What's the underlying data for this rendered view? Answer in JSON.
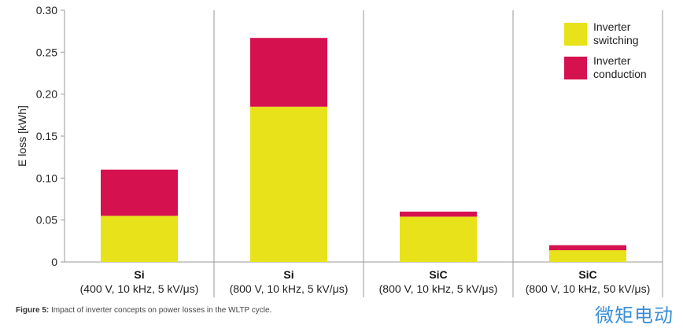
{
  "chart_data": {
    "type": "bar",
    "stacked": true,
    "ylabel": "E loss [kWh]",
    "ylim": [
      0,
      0.3
    ],
    "yticks": [
      "0",
      "0.05",
      "0.10",
      "0.15",
      "0.20",
      "0.25",
      "0.30"
    ],
    "categories": [
      {
        "name": "Si",
        "sub": "(400 V, 10 kHz, 5 kV/μs)"
      },
      {
        "name": "Si",
        "sub": "(800 V, 10 kHz, 5 kV/μs)"
      },
      {
        "name": "SiC",
        "sub": "(800 V, 10 kHz, 5 kV/μs)"
      },
      {
        "name": "SiC",
        "sub": "(800 V, 10 kHz, 50 kV/μs)"
      }
    ],
    "series": [
      {
        "name": "Inverter switching",
        "legend_lines": [
          "Inverter",
          "switching"
        ],
        "color": "#e8e21a",
        "values": [
          0.055,
          0.185,
          0.054,
          0.014
        ]
      },
      {
        "name": "Inverter conduction",
        "legend_lines": [
          "Inverter",
          "conduction"
        ],
        "color": "#d6114f",
        "values": [
          0.055,
          0.082,
          0.006,
          0.006
        ]
      }
    ],
    "legend_position": "top-right",
    "grid": false
  },
  "caption": {
    "label": "Figure 5:",
    "text": " Impact of inverter concepts on power losses in the WLTP cycle."
  },
  "watermark": "微矩电动",
  "colors": {
    "axis": "#999999",
    "text": "#222222"
  }
}
